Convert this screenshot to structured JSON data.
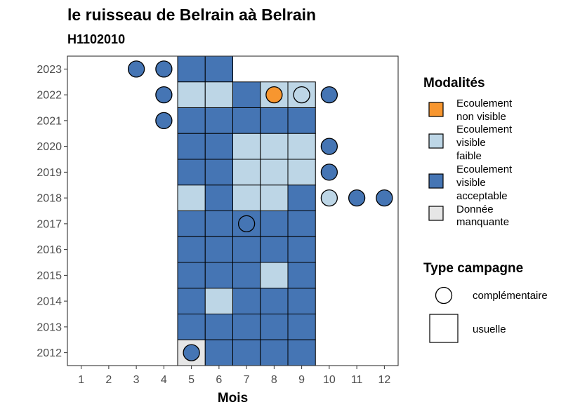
{
  "chart_data": {
    "type": "heatmap",
    "title": "le ruisseau de Belrain aà Belrain",
    "subtitle": "H1102010",
    "xlabel": "Mois",
    "ylabel": "",
    "x_ticks": [
      "1",
      "2",
      "3",
      "4",
      "5",
      "6",
      "7",
      "8",
      "9",
      "10",
      "11",
      "12"
    ],
    "y_ticks": [
      "2012",
      "2013",
      "2014",
      "2015",
      "2016",
      "2017",
      "2018",
      "2019",
      "2020",
      "2021",
      "2022",
      "2023"
    ],
    "xlim": [
      0.5,
      12.5
    ],
    "ylim": [
      2011.5,
      2023.5
    ],
    "grid": false,
    "colors": {
      "non_visible": "#f7962f",
      "visible_faible": "#bdd6e6",
      "visible_acceptable": "#4575b4",
      "manquante": "#e6e6e6"
    },
    "legend_modalites": {
      "title": "Modalités",
      "position": "right",
      "items": [
        {
          "key": "non_visible",
          "lines": [
            "Ecoulement",
            "non visible"
          ]
        },
        {
          "key": "visible_faible",
          "lines": [
            "Ecoulement",
            "visible",
            "faible"
          ]
        },
        {
          "key": "visible_acceptable",
          "lines": [
            "Ecoulement",
            "visible",
            "acceptable"
          ]
        },
        {
          "key": "manquante",
          "lines": [
            "Donnée",
            "manquante"
          ]
        }
      ]
    },
    "legend_campagne": {
      "title": "Type campagne",
      "items": [
        {
          "shape": "circle",
          "label": "complémentaire"
        },
        {
          "shape": "square",
          "label": "usuelle"
        }
      ]
    },
    "usuelle": [
      {
        "year": 2023,
        "month": 5,
        "m": "visible_acceptable"
      },
      {
        "year": 2023,
        "month": 6,
        "m": "visible_acceptable"
      },
      {
        "year": 2022,
        "month": 5,
        "m": "visible_faible"
      },
      {
        "year": 2022,
        "month": 6,
        "m": "visible_faible"
      },
      {
        "year": 2022,
        "month": 7,
        "m": "visible_acceptable"
      },
      {
        "year": 2022,
        "month": 8,
        "m": "visible_faible"
      },
      {
        "year": 2022,
        "month": 9,
        "m": "visible_faible"
      },
      {
        "year": 2021,
        "month": 5,
        "m": "visible_acceptable"
      },
      {
        "year": 2021,
        "month": 6,
        "m": "visible_acceptable"
      },
      {
        "year": 2021,
        "month": 7,
        "m": "visible_acceptable"
      },
      {
        "year": 2021,
        "month": 8,
        "m": "visible_acceptable"
      },
      {
        "year": 2021,
        "month": 9,
        "m": "visible_acceptable"
      },
      {
        "year": 2020,
        "month": 5,
        "m": "visible_acceptable"
      },
      {
        "year": 2020,
        "month": 6,
        "m": "visible_acceptable"
      },
      {
        "year": 2020,
        "month": 7,
        "m": "visible_faible"
      },
      {
        "year": 2020,
        "month": 8,
        "m": "visible_faible"
      },
      {
        "year": 2020,
        "month": 9,
        "m": "visible_faible"
      },
      {
        "year": 2019,
        "month": 5,
        "m": "visible_acceptable"
      },
      {
        "year": 2019,
        "month": 6,
        "m": "visible_acceptable"
      },
      {
        "year": 2019,
        "month": 7,
        "m": "visible_faible"
      },
      {
        "year": 2019,
        "month": 8,
        "m": "visible_faible"
      },
      {
        "year": 2019,
        "month": 9,
        "m": "visible_faible"
      },
      {
        "year": 2018,
        "month": 5,
        "m": "visible_faible"
      },
      {
        "year": 2018,
        "month": 6,
        "m": "visible_acceptable"
      },
      {
        "year": 2018,
        "month": 7,
        "m": "visible_faible"
      },
      {
        "year": 2018,
        "month": 8,
        "m": "visible_faible"
      },
      {
        "year": 2018,
        "month": 9,
        "m": "visible_acceptable"
      },
      {
        "year": 2017,
        "month": 5,
        "m": "visible_acceptable"
      },
      {
        "year": 2017,
        "month": 6,
        "m": "visible_acceptable"
      },
      {
        "year": 2017,
        "month": 7,
        "m": "visible_acceptable"
      },
      {
        "year": 2017,
        "month": 8,
        "m": "visible_acceptable"
      },
      {
        "year": 2017,
        "month": 9,
        "m": "visible_acceptable"
      },
      {
        "year": 2016,
        "month": 5,
        "m": "visible_acceptable"
      },
      {
        "year": 2016,
        "month": 6,
        "m": "visible_acceptable"
      },
      {
        "year": 2016,
        "month": 7,
        "m": "visible_acceptable"
      },
      {
        "year": 2016,
        "month": 8,
        "m": "visible_acceptable"
      },
      {
        "year": 2016,
        "month": 9,
        "m": "visible_acceptable"
      },
      {
        "year": 2015,
        "month": 5,
        "m": "visible_acceptable"
      },
      {
        "year": 2015,
        "month": 6,
        "m": "visible_acceptable"
      },
      {
        "year": 2015,
        "month": 7,
        "m": "visible_acceptable"
      },
      {
        "year": 2015,
        "month": 8,
        "m": "visible_faible"
      },
      {
        "year": 2015,
        "month": 9,
        "m": "visible_acceptable"
      },
      {
        "year": 2014,
        "month": 5,
        "m": "visible_acceptable"
      },
      {
        "year": 2014,
        "month": 6,
        "m": "visible_faible"
      },
      {
        "year": 2014,
        "month": 7,
        "m": "visible_acceptable"
      },
      {
        "year": 2014,
        "month": 8,
        "m": "visible_acceptable"
      },
      {
        "year": 2014,
        "month": 9,
        "m": "visible_acceptable"
      },
      {
        "year": 2013,
        "month": 5,
        "m": "visible_acceptable"
      },
      {
        "year": 2013,
        "month": 6,
        "m": "visible_acceptable"
      },
      {
        "year": 2013,
        "month": 7,
        "m": "visible_acceptable"
      },
      {
        "year": 2013,
        "month": 8,
        "m": "visible_acceptable"
      },
      {
        "year": 2013,
        "month": 9,
        "m": "visible_acceptable"
      },
      {
        "year": 2012,
        "month": 5,
        "m": "manquante"
      },
      {
        "year": 2012,
        "month": 6,
        "m": "visible_acceptable"
      },
      {
        "year": 2012,
        "month": 7,
        "m": "visible_acceptable"
      },
      {
        "year": 2012,
        "month": 8,
        "m": "visible_acceptable"
      },
      {
        "year": 2012,
        "month": 9,
        "m": "visible_acceptable"
      }
    ],
    "complementaire": [
      {
        "year": 2023,
        "month": 3,
        "m": "visible_acceptable"
      },
      {
        "year": 2023,
        "month": 4,
        "m": "visible_acceptable"
      },
      {
        "year": 2022,
        "month": 4,
        "m": "visible_acceptable"
      },
      {
        "year": 2022,
        "month": 8,
        "m": "non_visible"
      },
      {
        "year": 2022,
        "month": 9,
        "m": "visible_faible"
      },
      {
        "year": 2022,
        "month": 10,
        "m": "visible_acceptable"
      },
      {
        "year": 2021,
        "month": 4,
        "m": "visible_acceptable"
      },
      {
        "year": 2020,
        "month": 10,
        "m": "visible_acceptable"
      },
      {
        "year": 2019,
        "month": 10,
        "m": "visible_acceptable"
      },
      {
        "year": 2018,
        "month": 10,
        "m": "visible_faible"
      },
      {
        "year": 2018,
        "month": 11,
        "m": "visible_acceptable"
      },
      {
        "year": 2018,
        "month": 12,
        "m": "visible_acceptable"
      },
      {
        "year": 2017,
        "month": 7,
        "m": "visible_acceptable"
      },
      {
        "year": 2012,
        "month": 5,
        "m": "visible_acceptable"
      }
    ]
  }
}
